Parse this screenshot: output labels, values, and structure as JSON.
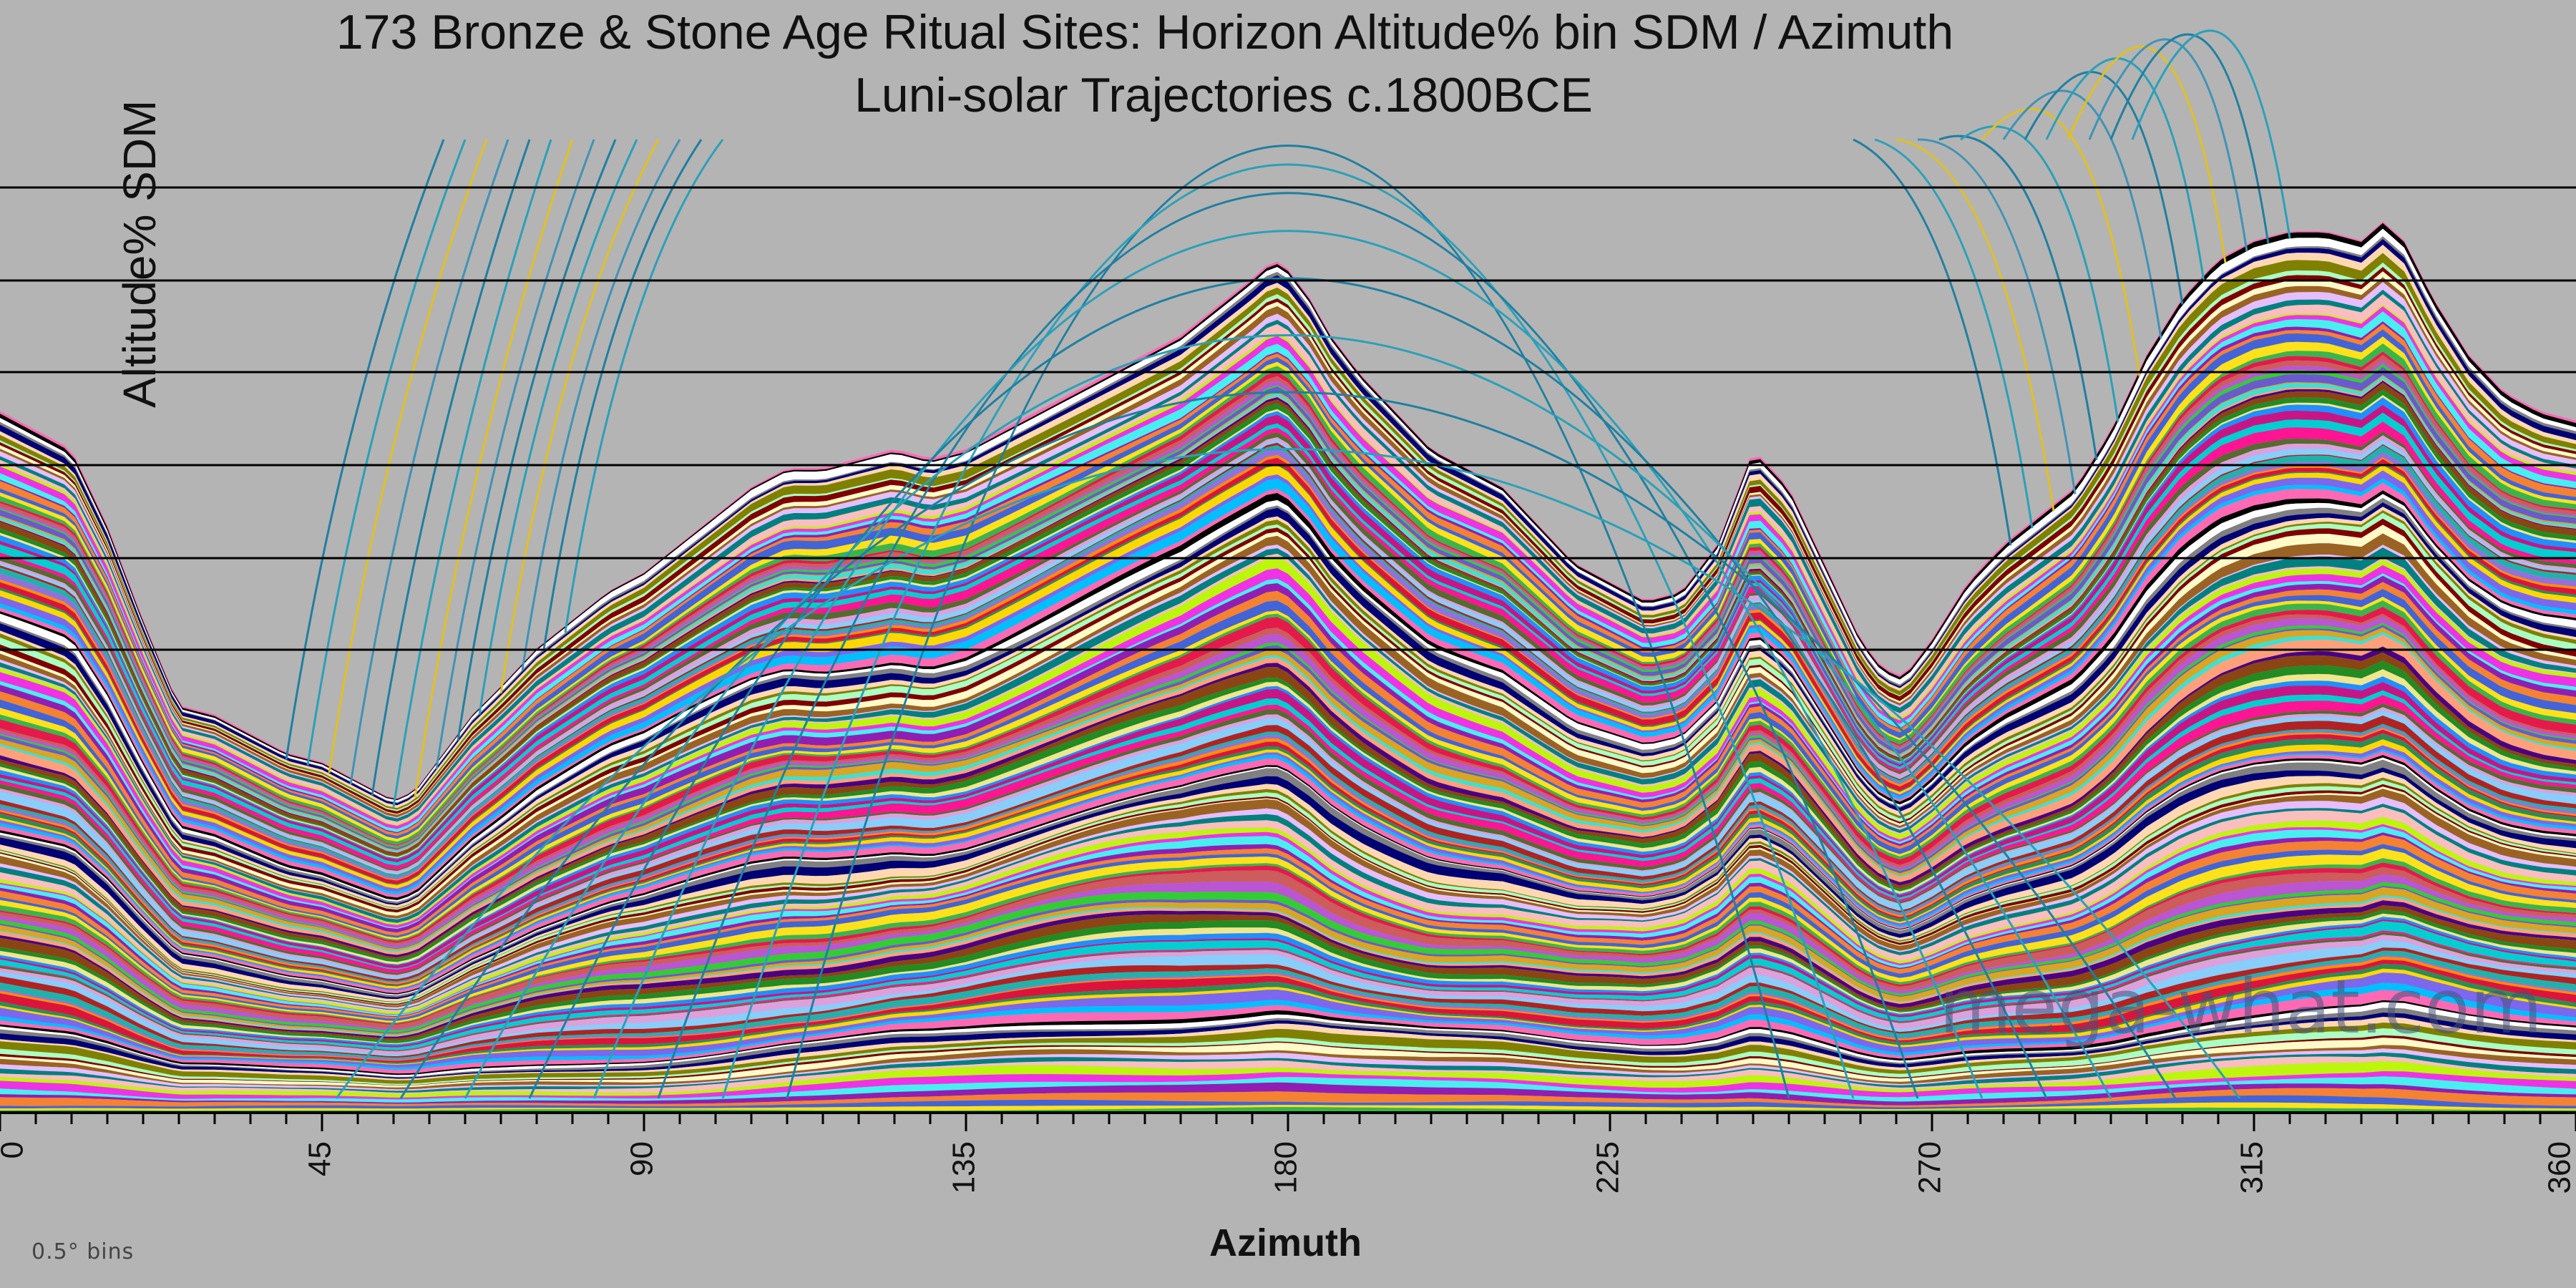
{
  "chart_data": {
    "type": "area",
    "title": "173 Bronze & Stone Age Ritual Sites: Horizon Altitude% bin SDM / Azimuth",
    "subtitle": "Luni-solar Trajectories c.1800BCE",
    "xlabel": "Azimuth",
    "ylabel": "Altitude% SDM",
    "xlim": [
      0,
      360
    ],
    "x_ticks": [
      "0",
      "45",
      "90",
      "135",
      "180",
      "225",
      "270",
      "315",
      "360"
    ],
    "grid": "horizontal",
    "stack_count": 173,
    "envelope": {
      "x": [
        0,
        5,
        10,
        15,
        20,
        25,
        30,
        35,
        40,
        45,
        50,
        55,
        58,
        62,
        66,
        70,
        75,
        80,
        85,
        90,
        95,
        100,
        105,
        110,
        115,
        120,
        125,
        130,
        135,
        140,
        145,
        150,
        155,
        160,
        165,
        170,
        175,
        178,
        180,
        183,
        186,
        190,
        195,
        200,
        205,
        210,
        215,
        220,
        225,
        230,
        235,
        240,
        245,
        250,
        255,
        260,
        263,
        266,
        270,
        275,
        280,
        285,
        290,
        295,
        300,
        305,
        310,
        315,
        320,
        325,
        330,
        333,
        336,
        340,
        345,
        350,
        355,
        360
      ],
      "y": [
        74,
        72,
        70,
        62,
        52,
        43,
        42,
        40,
        38,
        37,
        35,
        33,
        34,
        38,
        42,
        45,
        49,
        52,
        55,
        57,
        60,
        63,
        66,
        68,
        68,
        69,
        70,
        69,
        70,
        72,
        74,
        76,
        78,
        80,
        82,
        85,
        88,
        90,
        89,
        86,
        82,
        78,
        74,
        70,
        68,
        66,
        62,
        58,
        56,
        54,
        55,
        60,
        70,
        66,
        58,
        50,
        47,
        46,
        50,
        56,
        60,
        63,
        66,
        72,
        80,
        86,
        90,
        92,
        93,
        93,
        92,
        94,
        92,
        86,
        80,
        76,
        74,
        73
      ],
      "y_unit": "relative (0-100)"
    },
    "trajectories": {
      "east_rising_azimuths": [
        40,
        43,
        46,
        49,
        52,
        55,
        58,
        61,
        64,
        67,
        70,
        73,
        76,
        79
      ],
      "west_setting_azimuths": [
        281,
        284,
        287,
        290,
        293,
        296,
        299,
        302,
        305,
        308,
        311,
        314,
        317,
        320
      ],
      "meridian_arc_peaks": [
        92,
        90,
        87,
        83,
        78,
        72,
        66,
        60
      ]
    }
  },
  "watermark": "mega-what.com",
  "bin_note": "0.5°  bins"
}
